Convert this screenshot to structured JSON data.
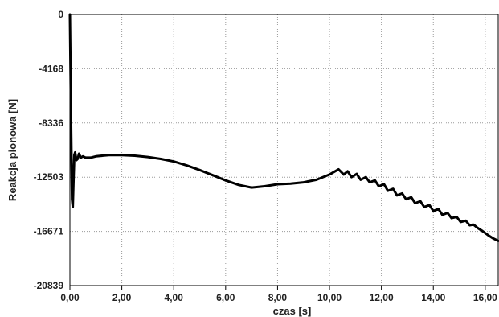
{
  "chart_data": {
    "type": "line",
    "title": "",
    "xlabel": "czas [s]",
    "ylabel": "Reakcja pionowa [N]",
    "xlim": [
      0,
      16.5
    ],
    "ylim": [
      -20839,
      0
    ],
    "grid": true,
    "legend": "none",
    "x_ticks": [
      0,
      2,
      4,
      6,
      8,
      10,
      12,
      14,
      16
    ],
    "x_tick_labels": [
      "0,00",
      "2,00",
      "4,00",
      "6,00",
      "8,00",
      "10,00",
      "12,00",
      "14,00",
      "16,00"
    ],
    "y_ticks": [
      0,
      -4168,
      -8336,
      -12503,
      -16671,
      -20839
    ],
    "y_tick_labels": [
      "0",
      "-4168",
      "-8336",
      "-12503",
      "-16671",
      "-20839"
    ],
    "series": [
      {
        "color": "#000000",
        "x": [
          0,
          0.02,
          0.05,
          0.08,
          0.11,
          0.14,
          0.17,
          0.2,
          0.25,
          0.3,
          0.35,
          0.42,
          0.5,
          0.6,
          0.8,
          1.0,
          1.5,
          2.0,
          2.5,
          3.0,
          3.5,
          4.0,
          4.5,
          5.0,
          5.5,
          6.0,
          6.5,
          7.0,
          7.5,
          8.0,
          8.5,
          9.0,
          9.5,
          10.0,
          10.35,
          10.55,
          10.7,
          10.85,
          11.05,
          11.2,
          11.4,
          11.55,
          11.75,
          11.9,
          12.1,
          12.25,
          12.45,
          12.6,
          12.8,
          12.95,
          13.15,
          13.3,
          13.5,
          13.65,
          13.85,
          14.0,
          14.2,
          14.35,
          14.55,
          14.7,
          14.9,
          15.05,
          15.25,
          15.4,
          15.55,
          15.7,
          15.9,
          16.1,
          16.3,
          16.5
        ],
        "y": [
          0,
          -3500,
          -9000,
          -14200,
          -14800,
          -12800,
          -10800,
          -10600,
          -11200,
          -11100,
          -10700,
          -11000,
          -10900,
          -11000,
          -11000,
          -10900,
          -10800,
          -10800,
          -10850,
          -10950,
          -11100,
          -11300,
          -11600,
          -11950,
          -12350,
          -12750,
          -13100,
          -13300,
          -13200,
          -13050,
          -13000,
          -12900,
          -12700,
          -12300,
          -11900,
          -12300,
          -12050,
          -12500,
          -12250,
          -12700,
          -12500,
          -12900,
          -12750,
          -13200,
          -13050,
          -13550,
          -13400,
          -13900,
          -13750,
          -14200,
          -14050,
          -14500,
          -14350,
          -14800,
          -14650,
          -15100,
          -14950,
          -15400,
          -15250,
          -15650,
          -15550,
          -15950,
          -15850,
          -16200,
          -16150,
          -16400,
          -16650,
          -16950,
          -17200,
          -17400
        ]
      }
    ]
  }
}
